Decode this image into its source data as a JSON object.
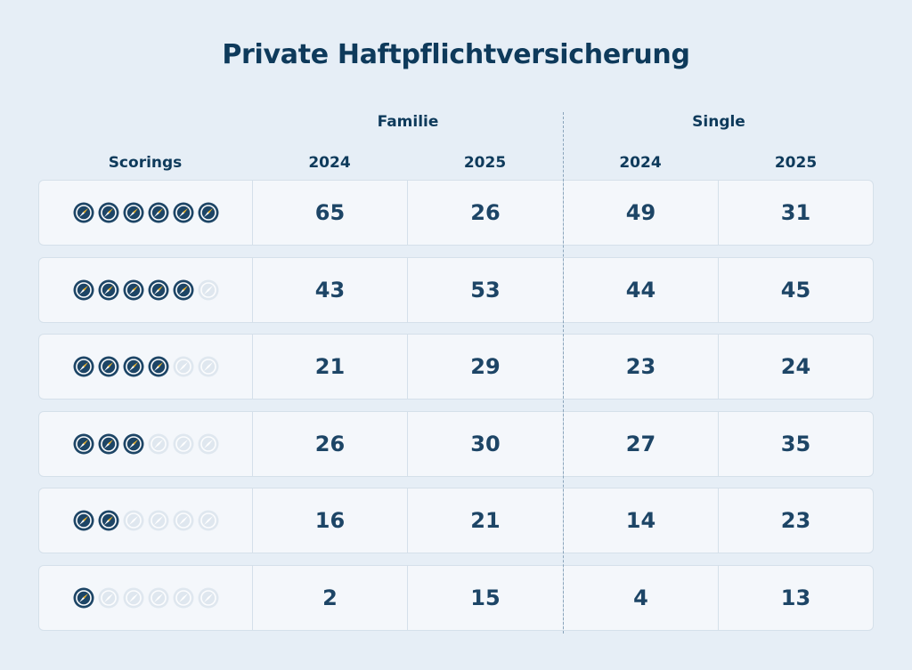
{
  "chart_data": {
    "type": "table",
    "title": "Private Haftpflichtversicherung",
    "row_header": "Scorings",
    "groups": [
      {
        "name": "Familie",
        "columns": [
          "2024",
          "2025"
        ]
      },
      {
        "name": "Single",
        "columns": [
          "2024",
          "2025"
        ]
      }
    ],
    "max_score": 6,
    "rows": [
      {
        "score": 6,
        "values": [
          65,
          26,
          49,
          31
        ]
      },
      {
        "score": 5,
        "values": [
          43,
          53,
          44,
          45
        ]
      },
      {
        "score": 4,
        "values": [
          21,
          29,
          23,
          24
        ]
      },
      {
        "score": 3,
        "values": [
          26,
          30,
          27,
          35
        ]
      },
      {
        "score": 2,
        "values": [
          16,
          21,
          14,
          23
        ]
      },
      {
        "score": 1,
        "values": [
          2,
          15,
          4,
          13
        ]
      }
    ]
  },
  "colors": {
    "accent": "#0e3a5b",
    "filled_icon": "#1d4566",
    "icon_highlight": "#f2b830",
    "empty_icon": "#dfe7ef",
    "row_bg": "#f4f7fb",
    "page_bg": "#e6eef6"
  },
  "icons": {
    "score": "compass-icon"
  }
}
